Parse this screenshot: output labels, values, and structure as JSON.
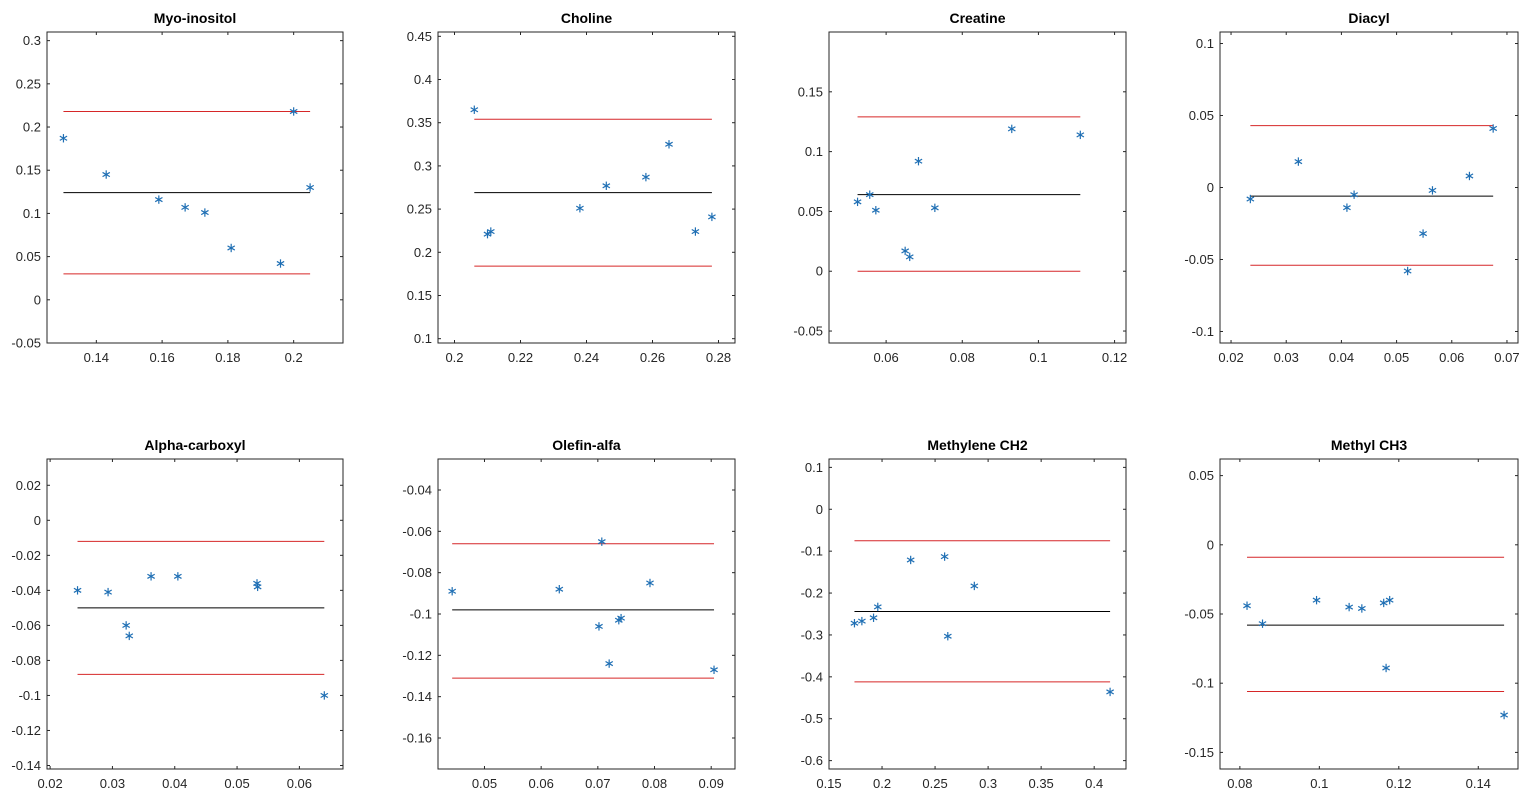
{
  "colors": {
    "axis": "#262626",
    "upper_loa": "#d62728",
    "lower_loa": "#d62728",
    "mean": "#000000",
    "point": "#1f6fb4"
  },
  "chart_data": [
    {
      "type": "scatter",
      "title": "Myo-inositol",
      "xlim": [
        0.125,
        0.215
      ],
      "ylim": [
        -0.05,
        0.31
      ],
      "xticks": [
        0.14,
        0.16,
        0.18,
        0.2
      ],
      "xtick_labels": [
        "0.14",
        "0.16",
        "0.18",
        "0.2"
      ],
      "yticks": [
        -0.05,
        0,
        0.05,
        0.1,
        0.15,
        0.2,
        0.25,
        0.3
      ],
      "ytick_labels": [
        "-0.05",
        "0",
        "0.05",
        "0.1",
        "0.15",
        "0.2",
        "0.25",
        "0.3"
      ],
      "x": [
        0.13,
        0.143,
        0.159,
        0.167,
        0.173,
        0.181,
        0.196,
        0.2,
        0.205
      ],
      "y": [
        0.187,
        0.145,
        0.116,
        0.107,
        0.101,
        0.06,
        0.042,
        0.218,
        0.13
      ],
      "mean": 0.124,
      "upper": 0.218,
      "lower": 0.03,
      "line_x": [
        0.13,
        0.205
      ]
    },
    {
      "type": "scatter",
      "title": "Choline",
      "xlim": [
        0.195,
        0.285
      ],
      "ylim": [
        0.095,
        0.455
      ],
      "xticks": [
        0.2,
        0.22,
        0.24,
        0.26,
        0.28
      ],
      "xtick_labels": [
        "0.2",
        "0.22",
        "0.24",
        "0.26",
        "0.28"
      ],
      "yticks": [
        0.1,
        0.15,
        0.2,
        0.25,
        0.3,
        0.35,
        0.4,
        0.45
      ],
      "ytick_labels": [
        "0.1",
        "0.15",
        "0.2",
        "0.25",
        "0.3",
        "0.35",
        "0.4",
        "0.45"
      ],
      "x": [
        0.206,
        0.21,
        0.211,
        0.238,
        0.246,
        0.258,
        0.265,
        0.273,
        0.278
      ],
      "y": [
        0.365,
        0.221,
        0.224,
        0.251,
        0.277,
        0.287,
        0.325,
        0.224,
        0.241
      ],
      "mean": 0.269,
      "upper": 0.354,
      "lower": 0.184,
      "line_x": [
        0.206,
        0.278
      ]
    },
    {
      "type": "scatter",
      "title": "Creatine",
      "xlim": [
        0.045,
        0.123
      ],
      "ylim": [
        -0.06,
        0.2
      ],
      "xticks": [
        0.06,
        0.08,
        0.1,
        0.12
      ],
      "xtick_labels": [
        "0.06",
        "0.08",
        "0.1",
        "0.12"
      ],
      "yticks": [
        -0.05,
        0,
        0.05,
        0.1,
        0.15
      ],
      "ytick_labels": [
        "-0.05",
        "0",
        "0.05",
        "0.1",
        "0.15"
      ],
      "x": [
        0.0525,
        0.0557,
        0.0573,
        0.065,
        0.0662,
        0.0685,
        0.0728,
        0.093,
        0.111
      ],
      "y": [
        0.058,
        0.064,
        0.051,
        0.017,
        0.012,
        0.092,
        0.053,
        0.119,
        0.114
      ],
      "mean": 0.064,
      "upper": 0.129,
      "lower": 0.0,
      "line_x": [
        0.0525,
        0.111
      ]
    },
    {
      "type": "scatter",
      "title": "Diacyl",
      "xlim": [
        0.018,
        0.072
      ],
      "ylim": [
        -0.108,
        0.108
      ],
      "xticks": [
        0.02,
        0.03,
        0.04,
        0.05,
        0.06,
        0.07
      ],
      "xtick_labels": [
        "0.02",
        "0.03",
        "0.04",
        "0.05",
        "0.06",
        "0.07"
      ],
      "yticks": [
        -0.1,
        -0.05,
        0,
        0.05,
        0.1
      ],
      "ytick_labels": [
        "-0.1",
        "-0.05",
        "0",
        "0.05",
        "0.1"
      ],
      "x": [
        0.0235,
        0.0322,
        0.041,
        0.0423,
        0.052,
        0.0548,
        0.0565,
        0.0632,
        0.0675
      ],
      "y": [
        -0.008,
        0.018,
        -0.014,
        -0.005,
        -0.058,
        -0.032,
        -0.002,
        0.008,
        0.041
      ],
      "mean": -0.006,
      "upper": 0.043,
      "lower": -0.054,
      "line_x": [
        0.0235,
        0.0675
      ]
    },
    {
      "type": "scatter",
      "title": "Alpha-carboxyl",
      "xlim": [
        0.0195,
        0.067
      ],
      "ylim": [
        -0.142,
        0.035
      ],
      "xticks": [
        0.02,
        0.03,
        0.04,
        0.05,
        0.06
      ],
      "xtick_labels": [
        "0.02",
        "0.03",
        "0.04",
        "0.05",
        "0.06"
      ],
      "yticks": [
        -0.14,
        -0.12,
        -0.1,
        -0.08,
        -0.06,
        -0.04,
        -0.02,
        0,
        0.02
      ],
      "ytick_labels": [
        "-0.14",
        "-0.12",
        "-0.1",
        "-0.08",
        "-0.06",
        "-0.04",
        "-0.02",
        "0",
        "0.02"
      ],
      "x": [
        0.0244,
        0.0293,
        0.0322,
        0.0327,
        0.0362,
        0.0405,
        0.0532,
        0.0533,
        0.064
      ],
      "y": [
        -0.04,
        -0.041,
        -0.06,
        -0.066,
        -0.032,
        -0.032,
        -0.036,
        -0.038,
        -0.1
      ],
      "mean": -0.05,
      "upper": -0.012,
      "lower": -0.088,
      "line_x": [
        0.0244,
        0.064
      ]
    },
    {
      "type": "scatter",
      "title": "Olefin-alfa",
      "xlim": [
        0.0418,
        0.0942
      ],
      "ylim": [
        -0.175,
        -0.025
      ],
      "xticks": [
        0.05,
        0.06,
        0.07,
        0.08,
        0.09
      ],
      "xtick_labels": [
        "0.05",
        "0.06",
        "0.07",
        "0.08",
        "0.09"
      ],
      "yticks": [
        -0.16,
        -0.14,
        -0.12,
        -0.1,
        -0.08,
        -0.06,
        -0.04
      ],
      "ytick_labels": [
        "-0.16",
        "-0.14",
        "-0.12",
        "-0.1",
        "-0.08",
        "-0.06",
        "-0.04"
      ],
      "x": [
        0.0443,
        0.0632,
        0.0702,
        0.0707,
        0.072,
        0.0737,
        0.0741,
        0.0792,
        0.0905
      ],
      "y": [
        -0.089,
        -0.088,
        -0.106,
        -0.065,
        -0.124,
        -0.103,
        -0.102,
        -0.085,
        -0.127
      ],
      "mean": -0.098,
      "upper": -0.066,
      "lower": -0.131,
      "line_x": [
        0.0443,
        0.0905
      ]
    },
    {
      "type": "scatter",
      "title": "Methylene CH2",
      "xlim": [
        0.15,
        0.43
      ],
      "ylim": [
        -0.62,
        0.12
      ],
      "xticks": [
        0.15,
        0.2,
        0.25,
        0.3,
        0.35,
        0.4
      ],
      "xtick_labels": [
        "0.15",
        "0.2",
        "0.25",
        "0.3",
        "0.35",
        "0.4"
      ],
      "yticks": [
        -0.6,
        -0.5,
        -0.4,
        -0.3,
        -0.2,
        -0.1,
        0,
        0.1
      ],
      "ytick_labels": [
        "-0.6",
        "-0.5",
        "-0.4",
        "-0.3",
        "-0.2",
        "-0.1",
        "0",
        "0.1"
      ],
      "x": [
        0.174,
        0.181,
        0.192,
        0.196,
        0.227,
        0.259,
        0.262,
        0.287,
        0.415
      ],
      "y": [
        -0.272,
        -0.267,
        -0.259,
        -0.233,
        -0.121,
        -0.113,
        -0.303,
        -0.183,
        -0.436
      ],
      "mean": -0.244,
      "upper": -0.075,
      "lower": -0.412,
      "line_x": [
        0.174,
        0.415
      ]
    },
    {
      "type": "scatter",
      "title": "Methyl CH3",
      "xlim": [
        0.075,
        0.15
      ],
      "ylim": [
        -0.162,
        0.062
      ],
      "xticks": [
        0.08,
        0.1,
        0.12,
        0.14
      ],
      "xtick_labels": [
        "0.08",
        "0.1",
        "0.12",
        "0.14"
      ],
      "yticks": [
        -0.15,
        -0.1,
        -0.05,
        0,
        0.05
      ],
      "ytick_labels": [
        "-0.15",
        "-0.1",
        "-0.05",
        "0",
        "0.05"
      ],
      "x": [
        0.0818,
        0.0857,
        0.0993,
        0.1075,
        0.1107,
        0.1162,
        0.1168,
        0.1177,
        0.1465
      ],
      "y": [
        -0.044,
        -0.057,
        -0.04,
        -0.045,
        -0.046,
        -0.042,
        -0.089,
        -0.04,
        -0.123
      ],
      "mean": -0.058,
      "upper": -0.009,
      "lower": -0.106,
      "line_x": [
        0.0818,
        0.1465
      ]
    }
  ]
}
